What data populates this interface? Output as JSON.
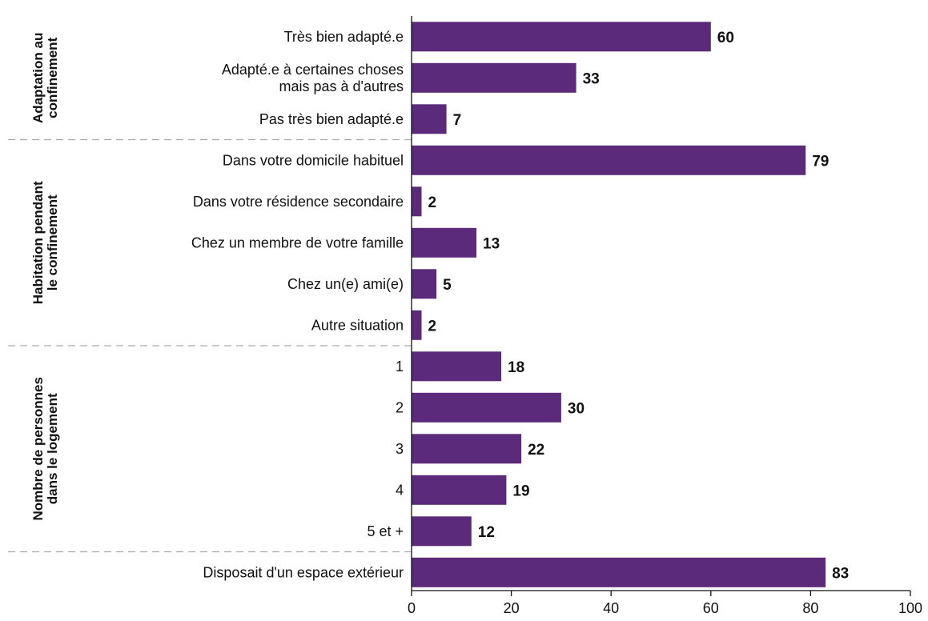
{
  "chart_data": {
    "type": "bar",
    "orientation": "horizontal",
    "bar_color": "#5b2a7a",
    "xlim": [
      0,
      100
    ],
    "xticks": [
      0,
      20,
      40,
      60,
      80,
      100
    ],
    "grid": false,
    "groups": [
      {
        "label": [
          "Adaptation au",
          "confinement"
        ],
        "items": [
          {
            "label": [
              "Très bien adapté.e"
            ],
            "value": 60
          },
          {
            "label": [
              "Adapté.e à certaines choses",
              "mais pas à d'autres"
            ],
            "value": 33
          },
          {
            "label": [
              "Pas très bien adapté.e"
            ],
            "value": 7
          }
        ]
      },
      {
        "label": [
          "Habitation pendant",
          "le confinement"
        ],
        "items": [
          {
            "label": [
              "Dans votre domicile habituel"
            ],
            "value": 79
          },
          {
            "label": [
              "Dans votre résidence secondaire"
            ],
            "value": 2
          },
          {
            "label": [
              "Chez un membre de votre famille"
            ],
            "value": 13
          },
          {
            "label": [
              "Chez un(e) ami(e)"
            ],
            "value": 5
          },
          {
            "label": [
              "Autre situation"
            ],
            "value": 2
          }
        ]
      },
      {
        "label": [
          "Nombre de personnes",
          "dans le logement"
        ],
        "items": [
          {
            "label": [
              "1"
            ],
            "value": 18
          },
          {
            "label": [
              "2"
            ],
            "value": 30
          },
          {
            "label": [
              "3"
            ],
            "value": 22
          },
          {
            "label": [
              "4"
            ],
            "value": 19
          },
          {
            "label": [
              "5 et +"
            ],
            "value": 12
          }
        ]
      },
      {
        "label": [],
        "items": [
          {
            "label": [
              "Disposait d'un espace extérieur"
            ],
            "value": 83
          }
        ]
      }
    ]
  }
}
